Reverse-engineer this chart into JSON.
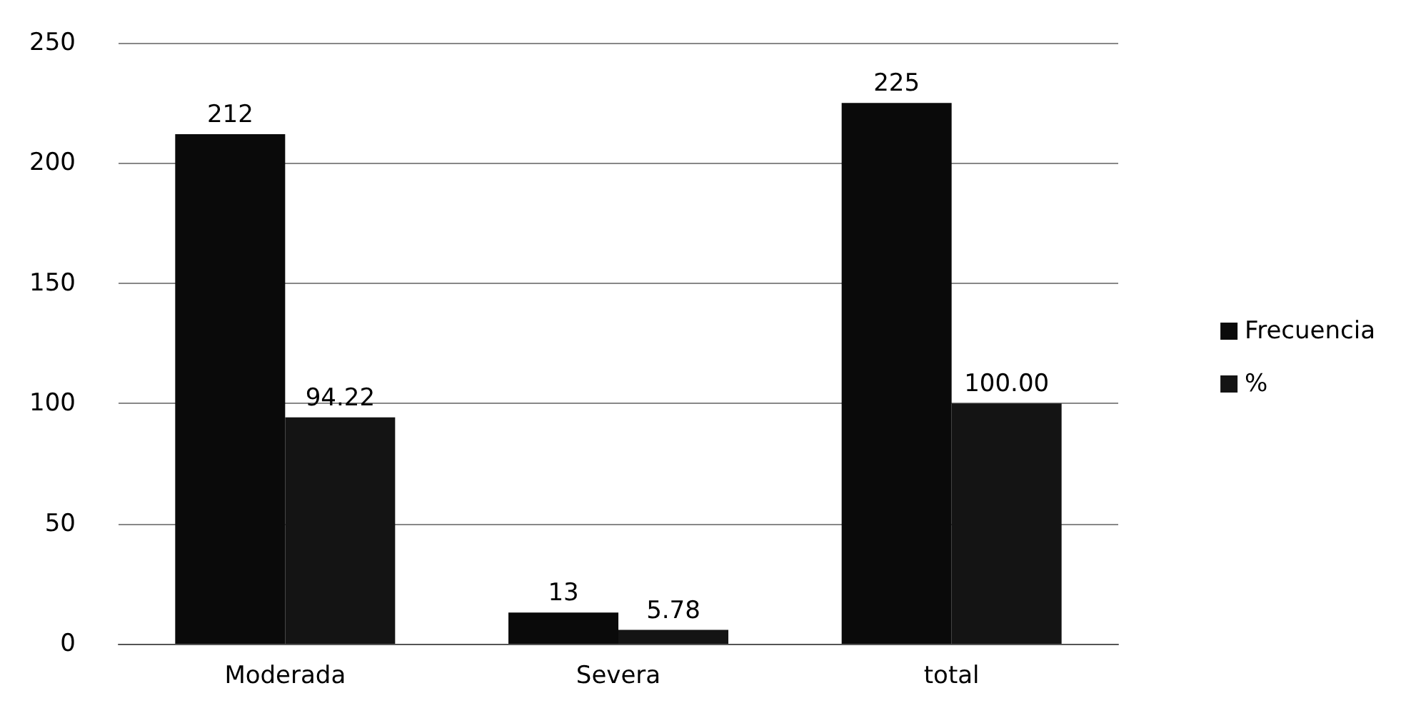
{
  "chart_data": {
    "type": "bar",
    "categories": [
      "Moderada",
      "Severa",
      "total"
    ],
    "series": [
      {
        "name": "Frecuencia",
        "color": "#0a0a0a",
        "values": [
          212,
          13,
          225
        ],
        "value_labels": [
          "212",
          "13",
          "225"
        ]
      },
      {
        "name": "%",
        "color": "#141414",
        "values": [
          94.22,
          5.78,
          100
        ],
        "value_labels": [
          "94.22",
          "5.78",
          "100.00"
        ]
      }
    ],
    "ylim": [
      0,
      250
    ],
    "yticks": [
      0,
      50,
      100,
      150,
      200,
      250
    ],
    "grid": "y",
    "legend": "right"
  }
}
